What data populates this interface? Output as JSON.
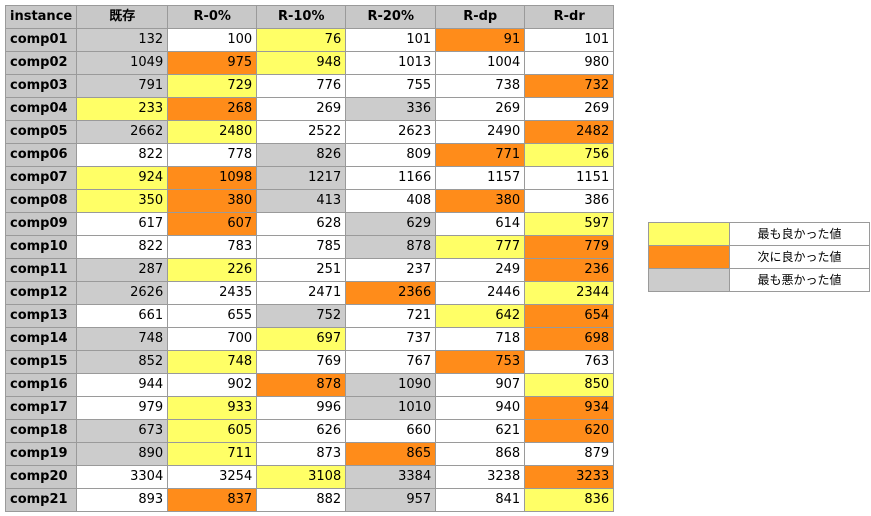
{
  "colors": {
    "best": "#ffff66",
    "second": "#ff8c1a",
    "worst": "#cccccc",
    "header": "#c8c8c8",
    "plain": "#ffffff"
  },
  "headers": [
    "instance",
    "既存",
    "R-0%",
    "R-10%",
    "R-20%",
    "R-dp",
    "R-dr"
  ],
  "rows": [
    {
      "name": "comp01",
      "values": [
        "132",
        "100",
        "76",
        "101",
        "91",
        "101"
      ],
      "marks": [
        "worst",
        "",
        "best",
        "",
        "second",
        ""
      ]
    },
    {
      "name": "comp02",
      "values": [
        "1049",
        "975",
        "948",
        "1013",
        "1004",
        "980"
      ],
      "marks": [
        "worst",
        "second",
        "best",
        "",
        "",
        ""
      ]
    },
    {
      "name": "comp03",
      "values": [
        "791",
        "729",
        "776",
        "755",
        "738",
        "732"
      ],
      "marks": [
        "worst",
        "best",
        "",
        "",
        "",
        "second"
      ]
    },
    {
      "name": "comp04",
      "values": [
        "233",
        "268",
        "269",
        "336",
        "269",
        "269"
      ],
      "marks": [
        "best",
        "second",
        "",
        "worst",
        "",
        ""
      ]
    },
    {
      "name": "comp05",
      "values": [
        "2662",
        "2480",
        "2522",
        "2623",
        "2490",
        "2482"
      ],
      "marks": [
        "worst",
        "best",
        "",
        "",
        "",
        "second"
      ]
    },
    {
      "name": "comp06",
      "values": [
        "822",
        "778",
        "826",
        "809",
        "771",
        "756"
      ],
      "marks": [
        "",
        "",
        "worst",
        "",
        "second",
        "best"
      ]
    },
    {
      "name": "comp07",
      "values": [
        "924",
        "1098",
        "1217",
        "1166",
        "1157",
        "1151"
      ],
      "marks": [
        "best",
        "second",
        "worst",
        "",
        "",
        ""
      ]
    },
    {
      "name": "comp08",
      "values": [
        "350",
        "380",
        "413",
        "408",
        "380",
        "386"
      ],
      "marks": [
        "best",
        "second",
        "worst",
        "",
        "second",
        ""
      ]
    },
    {
      "name": "comp09",
      "values": [
        "617",
        "607",
        "628",
        "629",
        "614",
        "597"
      ],
      "marks": [
        "",
        "second",
        "",
        "worst",
        "",
        "best"
      ]
    },
    {
      "name": "comp10",
      "values": [
        "822",
        "783",
        "785",
        "878",
        "777",
        "779"
      ],
      "marks": [
        "",
        "",
        "",
        "worst",
        "best",
        "second"
      ]
    },
    {
      "name": "comp11",
      "values": [
        "287",
        "226",
        "251",
        "237",
        "249",
        "236"
      ],
      "marks": [
        "worst",
        "best",
        "",
        "",
        "",
        "second"
      ]
    },
    {
      "name": "comp12",
      "values": [
        "2626",
        "2435",
        "2471",
        "2366",
        "2446",
        "2344"
      ],
      "marks": [
        "worst",
        "",
        "",
        "second",
        "",
        "best"
      ]
    },
    {
      "name": "comp13",
      "values": [
        "661",
        "655",
        "752",
        "721",
        "642",
        "654"
      ],
      "marks": [
        "",
        "",
        "worst",
        "",
        "best",
        "second"
      ]
    },
    {
      "name": "comp14",
      "values": [
        "748",
        "700",
        "697",
        "737",
        "718",
        "698"
      ],
      "marks": [
        "worst",
        "",
        "best",
        "",
        "",
        "second"
      ]
    },
    {
      "name": "comp15",
      "values": [
        "852",
        "748",
        "769",
        "767",
        "753",
        "763"
      ],
      "marks": [
        "worst",
        "best",
        "",
        "",
        "second",
        ""
      ]
    },
    {
      "name": "comp16",
      "values": [
        "944",
        "902",
        "878",
        "1090",
        "907",
        "850"
      ],
      "marks": [
        "",
        "",
        "second",
        "worst",
        "",
        "best"
      ]
    },
    {
      "name": "comp17",
      "values": [
        "979",
        "933",
        "996",
        "1010",
        "940",
        "934"
      ],
      "marks": [
        "",
        "best",
        "",
        "worst",
        "",
        "second"
      ]
    },
    {
      "name": "comp18",
      "values": [
        "673",
        "605",
        "626",
        "660",
        "621",
        "620"
      ],
      "marks": [
        "worst",
        "best",
        "",
        "",
        "",
        "second"
      ]
    },
    {
      "name": "comp19",
      "values": [
        "890",
        "711",
        "873",
        "865",
        "868",
        "879"
      ],
      "marks": [
        "worst",
        "best",
        "",
        "second",
        "",
        ""
      ]
    },
    {
      "name": "comp20",
      "values": [
        "3304",
        "3254",
        "3108",
        "3384",
        "3238",
        "3233"
      ],
      "marks": [
        "",
        "",
        "best",
        "worst",
        "",
        "second"
      ]
    },
    {
      "name": "comp21",
      "values": [
        "893",
        "837",
        "882",
        "957",
        "841",
        "836"
      ],
      "marks": [
        "",
        "second",
        "",
        "worst",
        "",
        "best"
      ]
    }
  ],
  "legend": [
    {
      "key": "best",
      "label": "最も良かった値"
    },
    {
      "key": "second",
      "label": "次に良かった値"
    },
    {
      "key": "worst",
      "label": "最も悪かった値"
    }
  ]
}
